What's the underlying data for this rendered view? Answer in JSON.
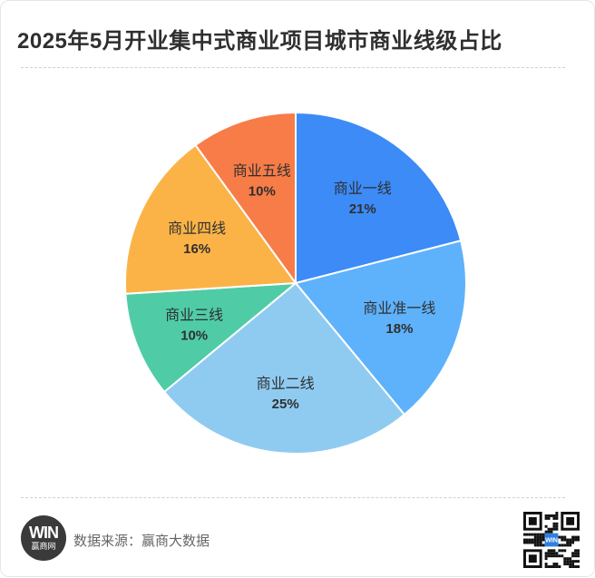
{
  "title": "2025年5月开业集中式商业项目城市商业线级占比",
  "footer": {
    "source": "数据来源：赢商大数据",
    "logo_mark": "WIN",
    "logo_name": "赢商网",
    "qr_center": "WIN"
  },
  "colors": {
    "slices": [
      "#3c8bf7",
      "#5eb2fb",
      "#8fcbf1",
      "#4fcca6",
      "#fbb348",
      "#f77c48"
    ],
    "text": "#2f2f2f"
  },
  "chart_data": {
    "type": "pie",
    "title": "2025年5月开业集中式商业项目城市商业线级占比",
    "labels": [
      "商业一线",
      "商业准一线",
      "商业二线",
      "商业三线",
      "商业四线",
      "商业五线"
    ],
    "values": [
      21,
      18,
      25,
      10,
      16,
      10
    ],
    "value_labels": [
      "21%",
      "18%",
      "25%",
      "10%",
      "16%",
      "10%"
    ],
    "start_angle": "12 o'clock",
    "direction": "clockwise",
    "legend": "none"
  }
}
